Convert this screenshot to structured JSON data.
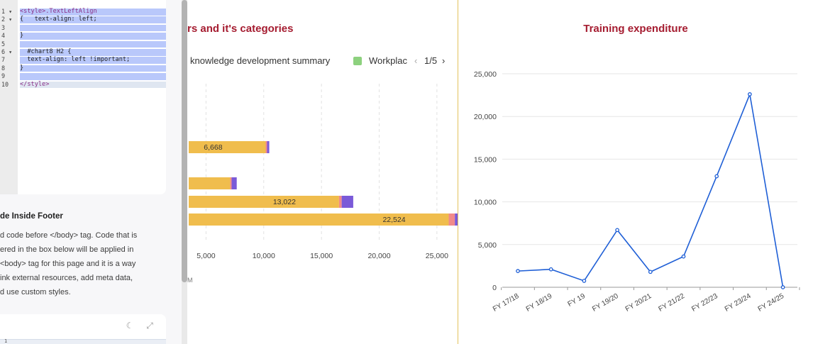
{
  "code_editor": {
    "lines": [
      {
        "num": "1",
        "fold": true,
        "text": "<style>.TextLeftAlign"
      },
      {
        "num": "2",
        "fold": true,
        "text": "{   text-align: left;"
      },
      {
        "num": "3",
        "fold": false,
        "text": ""
      },
      {
        "num": "4",
        "fold": false,
        "text": "}"
      },
      {
        "num": "5",
        "fold": false,
        "text": ""
      },
      {
        "num": "6",
        "fold": true,
        "text": "  #chart8 H2 {"
      },
      {
        "num": "7",
        "fold": false,
        "text": "  text-align: left !important;"
      },
      {
        "num": "8",
        "fold": false,
        "text": "}"
      },
      {
        "num": "9",
        "fold": false,
        "text": ""
      },
      {
        "num": "10",
        "fold": false,
        "text": "</style>"
      }
    ]
  },
  "footer_section": {
    "heading": "de Inside Footer",
    "description": [
      "d code before </body> tag. Code that is",
      "ered in the box below will be applied in",
      " <body> tag for this page and it is a way",
      "ink external resources, add meta data,",
      "d use custom styles."
    ],
    "gutter_line": "1"
  },
  "icons": {
    "theme": "moon-icon",
    "expand": "expand-icon"
  },
  "left_chart": {
    "title": "rs and it's categories",
    "legend": {
      "item1": "knowledge development summary",
      "item2": "Workplac",
      "page": "1/5",
      "prev": "‹",
      "next": "›"
    },
    "axis_stub": "M"
  },
  "right_chart": {
    "title": "Training expenditure"
  },
  "chart_data": [
    {
      "type": "bar",
      "orientation": "horizontal",
      "title": "rs and it's categories",
      "x_ticks": [
        "5,000",
        "10,000",
        "15,000",
        "20,000",
        "25,000"
      ],
      "xlim": [
        3500,
        25500
      ],
      "bars": [
        {
          "label": "6,668",
          "segments": [
            {
              "value": 6668,
              "color": "#f0bd4d"
            },
            {
              "value": 120,
              "color": "#f18a8a"
            },
            {
              "value": 190,
              "color": "#7a5ad8"
            }
          ]
        },
        {
          "label": "",
          "segments": [
            {
              "value": 3600,
              "color": "#f0bd4d"
            },
            {
              "value": 120,
              "color": "#f18a8a"
            },
            {
              "value": 440,
              "color": "#7a5ad8"
            }
          ]
        },
        {
          "label": "13,022",
          "segments": [
            {
              "value": 13022,
              "color": "#f0bd4d"
            },
            {
              "value": 230,
              "color": "#f18a8a"
            },
            {
              "value": 1000,
              "color": "#7a5ad8"
            }
          ]
        },
        {
          "label": "22,524",
          "segments": [
            {
              "value": 22524,
              "color": "#f0bd4d"
            },
            {
              "value": 530,
              "color": "#f18a8a"
            },
            {
              "value": 1060,
              "color": "#7a5ad8"
            }
          ]
        }
      ]
    },
    {
      "type": "line",
      "title": "Training expenditure",
      "categories": [
        "FY 17/18",
        "FY 18/19",
        "FY 19",
        "FY 19/20",
        "FY 20/21",
        "FY 21/22",
        "FY 22/23",
        "FY 23/24",
        "FY 24/25"
      ],
      "series": [
        {
          "values": [
            1900,
            2100,
            750,
            6700,
            1800,
            3600,
            13000,
            22600,
            0
          ],
          "color": "#1f5fd6"
        }
      ],
      "y_ticks": [
        "0",
        "5,000",
        "10,000",
        "15,000",
        "20,000",
        "25,000"
      ],
      "ylim": [
        0,
        25000
      ],
      "grid": true
    }
  ]
}
